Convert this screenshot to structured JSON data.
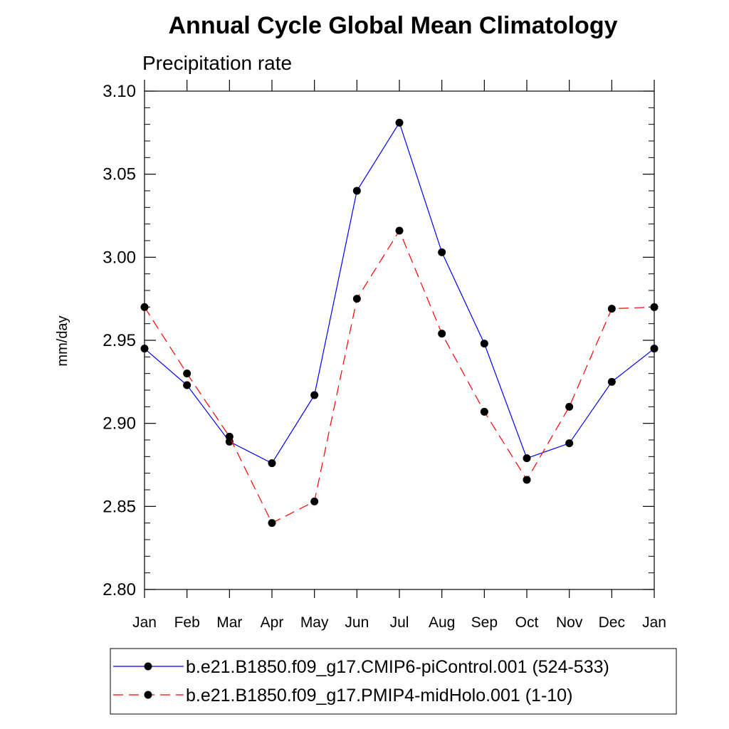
{
  "chart_data": {
    "type": "line",
    "title": "Annual Cycle Global Mean Climatology",
    "subtitle": "Precipitation rate",
    "xlabel": "",
    "ylabel": "mm/day",
    "categories": [
      "Jan",
      "Feb",
      "Mar",
      "Apr",
      "May",
      "Jun",
      "Jul",
      "Aug",
      "Sep",
      "Oct",
      "Nov",
      "Dec",
      "Jan"
    ],
    "ylim": [
      2.8,
      3.1
    ],
    "yticks": [
      "2.80",
      "2.85",
      "2.90",
      "2.95",
      "3.00",
      "3.05",
      "3.10"
    ],
    "ytick_values": [
      2.8,
      2.85,
      2.9,
      2.95,
      3.0,
      3.05,
      3.1
    ],
    "grid": false,
    "legend_position": "bottom",
    "series": [
      {
        "name": "b.e21.B1850.f09_g17.CMIP6-piControl.001 (524-533)",
        "color": "#0000ff",
        "line_style": "solid",
        "values": [
          2.945,
          2.923,
          2.889,
          2.876,
          2.917,
          3.04,
          3.081,
          3.003,
          2.948,
          2.879,
          2.888,
          2.925,
          2.945
        ]
      },
      {
        "name": "b.e21.B1850.f09_g17.PMIP4-midHolo.001 (1-10)",
        "color": "#ff0000",
        "line_style": "dashed",
        "values": [
          2.97,
          2.93,
          2.892,
          2.84,
          2.853,
          2.975,
          3.016,
          2.954,
          2.907,
          2.866,
          2.91,
          2.969,
          2.97
        ]
      }
    ]
  }
}
